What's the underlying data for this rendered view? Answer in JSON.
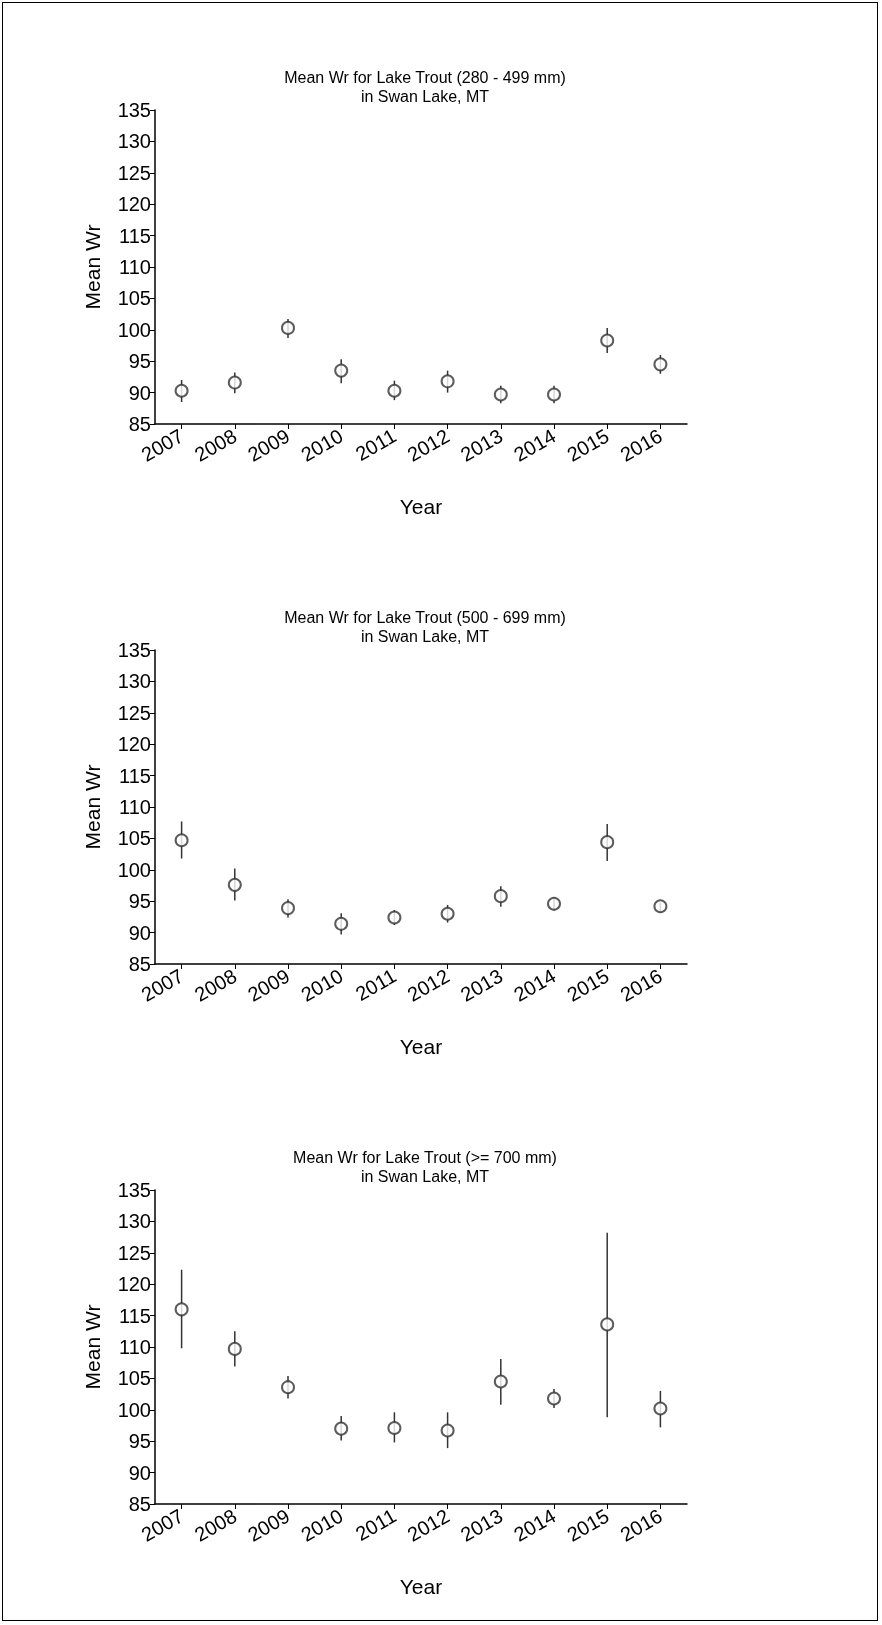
{
  "chart_data": [
    {
      "type": "scatter",
      "title": "Mean Wr for Lake Trout (280 - 499 mm)\nin Swan Lake, MT",
      "xlabel": "Year",
      "ylabel": "Mean Wr",
      "categories": [
        "2007",
        "2008",
        "2009",
        "2010",
        "2011",
        "2012",
        "2013",
        "2014",
        "2015",
        "2016"
      ],
      "values": [
        90.3,
        91.6,
        100.3,
        93.5,
        90.3,
        91.8,
        89.7,
        89.7,
        98.3,
        94.5
      ],
      "errors": [
        [
          88.5,
          92.0
        ],
        [
          89.9,
          93.2
        ],
        [
          98.7,
          101.7
        ],
        [
          91.5,
          95.3
        ],
        [
          88.8,
          91.9
        ],
        [
          90.0,
          93.5
        ],
        [
          88.3,
          91.1
        ],
        [
          88.3,
          91.1
        ],
        [
          96.3,
          100.3
        ],
        [
          93.0,
          96.0
        ]
      ],
      "color": "#333333",
      "marker": "circle",
      "ylim": [
        85,
        135
      ],
      "yticks": [
        85,
        90,
        95,
        100,
        105,
        110,
        115,
        120,
        125,
        130,
        135
      ]
    },
    {
      "type": "scatter",
      "title": "Mean Wr for Lake Trout (500 - 699 mm)\nin Swan Lake, MT",
      "xlabel": "Year",
      "ylabel": "Mean Wr",
      "categories": [
        "2007",
        "2008",
        "2009",
        "2010",
        "2011",
        "2012",
        "2013",
        "2014",
        "2015",
        "2016"
      ],
      "values": [
        104.7,
        97.6,
        93.9,
        91.4,
        92.4,
        93.0,
        95.8,
        94.6,
        104.4,
        94.2
      ],
      "errors": [
        [
          101.8,
          107.7
        ],
        [
          95.1,
          100.2
        ],
        [
          92.4,
          95.3
        ],
        [
          89.7,
          93.1
        ],
        [
          91.2,
          93.6
        ],
        [
          91.6,
          94.4
        ],
        [
          94.1,
          97.4
        ],
        [
          93.5,
          95.6
        ],
        [
          101.4,
          107.3
        ],
        [
          93.2,
          94.8
        ]
      ],
      "color": "#333333",
      "marker": "circle",
      "ylim": [
        85,
        135
      ],
      "yticks": [
        85,
        90,
        95,
        100,
        105,
        110,
        115,
        120,
        125,
        130,
        135
      ]
    },
    {
      "type": "scatter",
      "title": "Mean Wr for Lake Trout (>= 700 mm)\nin Swan Lake, MT",
      "xlabel": "Year",
      "ylabel": "Mean Wr",
      "categories": [
        "2007",
        "2008",
        "2009",
        "2010",
        "2011",
        "2012",
        "2013",
        "2014",
        "2015",
        "2016"
      ],
      "values": [
        116.0,
        109.7,
        103.6,
        97.0,
        97.1,
        96.7,
        104.5,
        101.8,
        113.6,
        100.2
      ],
      "errors": [
        [
          109.8,
          122.3
        ],
        [
          106.9,
          112.5
        ],
        [
          101.8,
          105.4
        ],
        [
          95.1,
          99.0
        ],
        [
          94.8,
          99.6
        ],
        [
          93.9,
          99.6
        ],
        [
          100.8,
          108.1
        ],
        [
          100.3,
          103.3
        ],
        [
          98.8,
          128.2
        ],
        [
          97.2,
          103.0
        ]
      ],
      "color": "#333333",
      "marker": "circle",
      "ylim": [
        85,
        135
      ],
      "yticks": [
        85,
        90,
        95,
        100,
        105,
        110,
        115,
        120,
        125,
        130,
        135
      ]
    }
  ]
}
